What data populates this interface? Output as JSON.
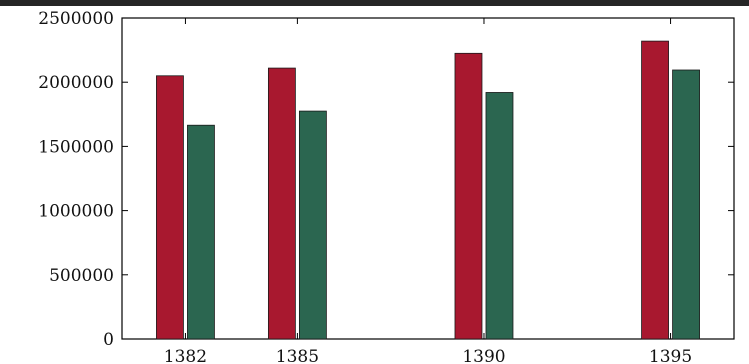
{
  "chart_data": {
    "type": "bar",
    "categories": [
      "1382",
      "1385",
      "1390",
      "1395"
    ],
    "x": [
      1382,
      1385,
      1390,
      1395
    ],
    "series": [
      {
        "values": [
          2050000,
          2110000,
          2225000,
          2320000
        ],
        "color": "#a8182f"
      },
      {
        "values": [
          1665000,
          1775000,
          1920000,
          2095000
        ],
        "color": "#2b6650"
      }
    ],
    "ylim": [
      0,
      2500000
    ],
    "yticks": [
      0,
      500000,
      1000000,
      1500000,
      2000000,
      2500000
    ],
    "grid": false,
    "legend": "none"
  }
}
